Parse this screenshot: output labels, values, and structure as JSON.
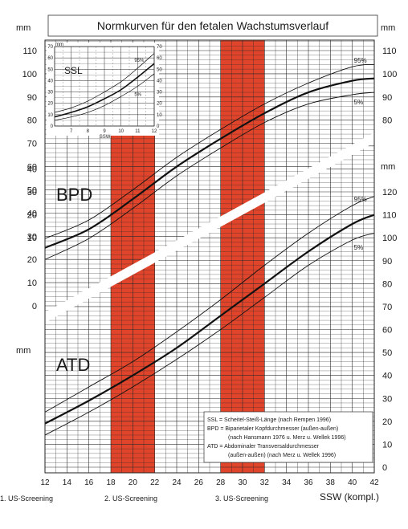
{
  "title": "Normkurven für den fetalen Wachstumsverlauf",
  "colors": {
    "screening_band": "#e0442a",
    "grid": "#2a2a2a",
    "curve": "#111111",
    "divider": "#ffffff"
  },
  "axes": {
    "unit_mm": "mm",
    "x_label": "SSW (kompl.)",
    "x_ticks": [
      "12",
      "14",
      "16",
      "18",
      "20",
      "22",
      "24",
      "26",
      "28",
      "30",
      "32",
      "34",
      "36",
      "38",
      "40",
      "42"
    ],
    "left_upper_ticks": [
      "110",
      "100",
      "90",
      "80",
      "70",
      "60",
      "50",
      "40",
      "30",
      "20",
      "10",
      "0"
    ],
    "left_lower_ticks": [
      "40",
      "30",
      "20",
      "10"
    ],
    "right_upper_ticks": [
      "110",
      "100",
      "90",
      "80"
    ],
    "right_lower_ticks": [
      "120",
      "110",
      "100",
      "90",
      "80",
      "70",
      "60",
      "50",
      "40",
      "30",
      "20",
      "10",
      "0"
    ]
  },
  "screenings": [
    {
      "label": "1. US-Screening"
    },
    {
      "label": "2. US-Screening"
    },
    {
      "label": "3. US-Screening"
    }
  ],
  "chart_data": [
    {
      "type": "line",
      "title": "BPD",
      "xlabel": "SSW (kompl.)",
      "ylabel": "mm",
      "xlim": [
        12,
        42
      ],
      "ylim": [
        0,
        110
      ],
      "x": [
        12,
        16,
        20,
        24,
        28,
        32,
        36,
        40,
        42
      ],
      "series": [
        {
          "name": "95%",
          "values": [
            29,
            37,
            50,
            64,
            76,
            87,
            96,
            103,
            104
          ]
        },
        {
          "name": "",
          "values": [
            25,
            33,
            46,
            60,
            72,
            83,
            92,
            97,
            98
          ]
        },
        {
          "name": "5%",
          "values": [
            20,
            29,
            42,
            56,
            68,
            79,
            87,
            91,
            92
          ]
        }
      ]
    },
    {
      "type": "line",
      "title": "ATD",
      "xlabel": "SSW (kompl.)",
      "ylabel": "mm",
      "xlim": [
        12,
        42
      ],
      "ylim": [
        0,
        120
      ],
      "x": [
        12,
        16,
        20,
        24,
        28,
        32,
        36,
        40,
        42
      ],
      "series": [
        {
          "name": "95%",
          "values": [
            24,
            35,
            46,
            59,
            73,
            88,
            102,
            114,
            118
          ]
        },
        {
          "name": "",
          "values": [
            19,
            29,
            40,
            52,
            66,
            80,
            94,
            106,
            110
          ]
        },
        {
          "name": "5%",
          "values": [
            14,
            24,
            35,
            47,
            60,
            74,
            88,
            99,
            102
          ]
        }
      ]
    },
    {
      "type": "line",
      "title": "SSL",
      "xlabel": "SSW",
      "ylabel": "mm",
      "xlim": [
        6,
        12
      ],
      "ylim": [
        0,
        70
      ],
      "x": [
        6,
        7,
        8,
        9,
        10,
        11,
        12
      ],
      "x_ticks": [
        "7",
        "8",
        "9",
        "10",
        "11",
        "12"
      ],
      "y_ticks": [
        "70",
        "60",
        "50",
        "40",
        "30",
        "20",
        "10",
        "0"
      ],
      "series": [
        {
          "name": "95%",
          "values": [
            12,
            16,
            22,
            30,
            39,
            51,
            64
          ]
        },
        {
          "name": "",
          "values": [
            8,
            12,
            17,
            24,
            32,
            43,
            55
          ]
        },
        {
          "name": "5%",
          "values": [
            5,
            8,
            12,
            18,
            26,
            35,
            46
          ]
        }
      ]
    }
  ],
  "legend": {
    "lines": [
      "SSL  = Scheitel-Steiß-Länge (nach Rempen 1996)",
      "BPD = Biparietaler Kopfdurchmesser (außen-außen)",
      "(nach Hansmann 1976 u. Merz u. Wellek 1996)",
      "ATD = Abdominaler Transversaldurchmesser",
      "(außen-außen) (nach Merz u. Wellek 1996)"
    ]
  }
}
